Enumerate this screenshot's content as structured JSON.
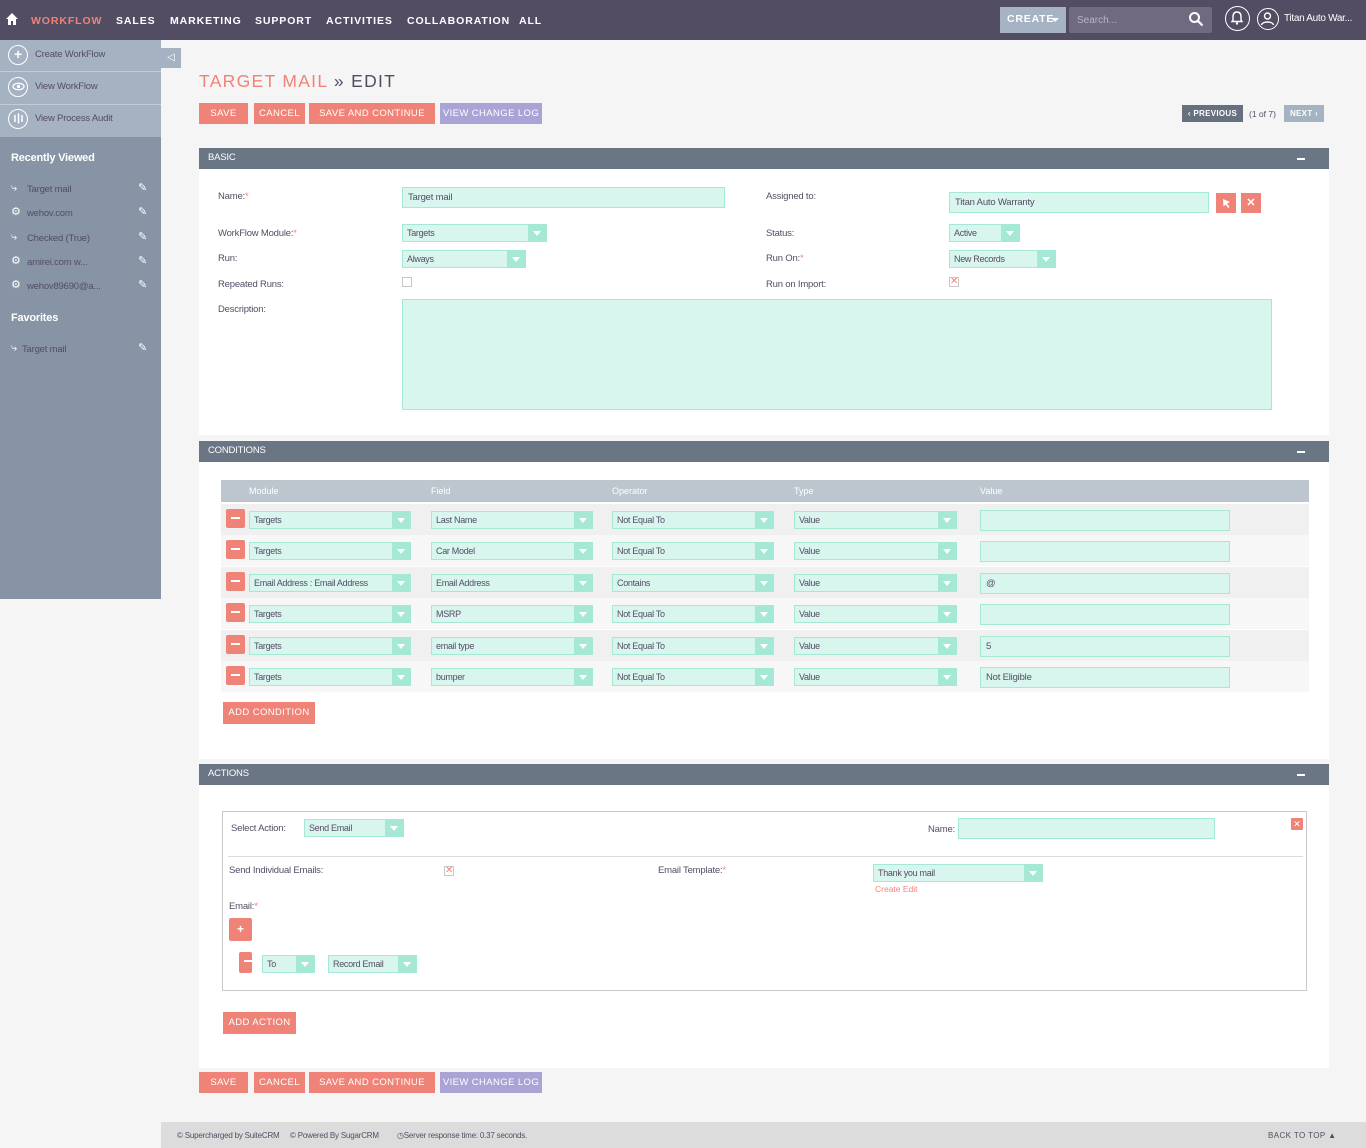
{
  "nav": {
    "items": [
      "WORKFLOW",
      "SALES",
      "MARKETING",
      "SUPPORT",
      "ACTIVITIES",
      "COLLABORATION",
      "ALL"
    ],
    "create_label": "CREATE",
    "search_placeholder": "Search...",
    "user_name": "Titan Auto War..."
  },
  "sidebar": {
    "actions": [
      "Create WorkFlow",
      "View WorkFlow",
      "View Process Audit"
    ],
    "recently_viewed_title": "Recently Viewed",
    "recently_viewed": [
      "Target mail",
      "wehov.com",
      "Checked (True)",
      "amirei.com w...",
      "wehov89690@a..."
    ],
    "favorites_title": "Favorites",
    "favorites": [
      "Target mail"
    ]
  },
  "title": {
    "module": "TARGET MAIL",
    "separator": "»",
    "action": "EDIT"
  },
  "buttons": {
    "save": "SAVE",
    "cancel": "CANCEL",
    "save_continue": "SAVE AND CONTINUE",
    "change_log": "VIEW CHANGE LOG"
  },
  "pagination": {
    "previous": "PREVIOUS",
    "count": "(1 of 7)",
    "next": "NEXT"
  },
  "basic": {
    "title": "BASIC",
    "name_label": "Name:",
    "name_value": "Target mail",
    "assigned_label": "Assigned to:",
    "assigned_value": "Titan Auto Warranty",
    "module_label": "WorkFlow Module:",
    "module_value": "Targets",
    "status_label": "Status:",
    "status_value": "Active",
    "run_label": "Run:",
    "run_value": "Always",
    "run_on_label": "Run On:",
    "run_on_value": "New Records",
    "repeated_label": "Repeated Runs:",
    "repeated_checked": false,
    "run_import_label": "Run on Import:",
    "run_import_checked": true,
    "description_label": "Description:",
    "description_value": ""
  },
  "conditions": {
    "title": "CONDITIONS",
    "headers": [
      "Module",
      "Field",
      "Operator",
      "Type",
      "Value"
    ],
    "rows": [
      {
        "module": "Targets",
        "field": "Last Name",
        "operator": "Not Equal To",
        "type": "Value",
        "value": ""
      },
      {
        "module": "Targets",
        "field": "Car Model",
        "operator": "Not Equal To",
        "type": "Value",
        "value": ""
      },
      {
        "module": "Email Address : Email Address",
        "field": "Email Address",
        "operator": "Contains",
        "type": "Value",
        "value": "@"
      },
      {
        "module": "Targets",
        "field": "MSRP",
        "operator": "Not Equal To",
        "type": "Value",
        "value": ""
      },
      {
        "module": "Targets",
        "field": "email type",
        "operator": "Not Equal To",
        "type": "Value",
        "value": "5"
      },
      {
        "module": "Targets",
        "field": "bumper",
        "operator": "Not Equal To",
        "type": "Value",
        "value": "Not Eligible"
      }
    ],
    "add_label": "ADD CONDITION"
  },
  "actions": {
    "title": "ACTIONS",
    "select_action_label": "Select Action:",
    "select_action_value": "Send Email",
    "name_label": "Name:",
    "name_value": "",
    "send_individual_label": "Send Individual Emails:",
    "send_individual_checked": true,
    "template_label": "Email Template:",
    "template_value": "Thank you mail",
    "template_links": "Create Edit",
    "email_label": "Email:",
    "email_to": "To",
    "email_source": "Record Email",
    "add_label": "ADD ACTION"
  },
  "footer": {
    "suitecrm": "© Supercharged by SuiteCRM",
    "sugarcrm": "© Powered By SugarCRM",
    "response": "Server response time: 0.37 seconds.",
    "back_to_top": "BACK TO TOP"
  },
  "colors": {
    "accent": "#f08377",
    "nav_bg": "#534d64",
    "sidebar_bg": "#8694a5",
    "input_bg": "#d8f5ee",
    "panel_head": "#6b7685"
  }
}
